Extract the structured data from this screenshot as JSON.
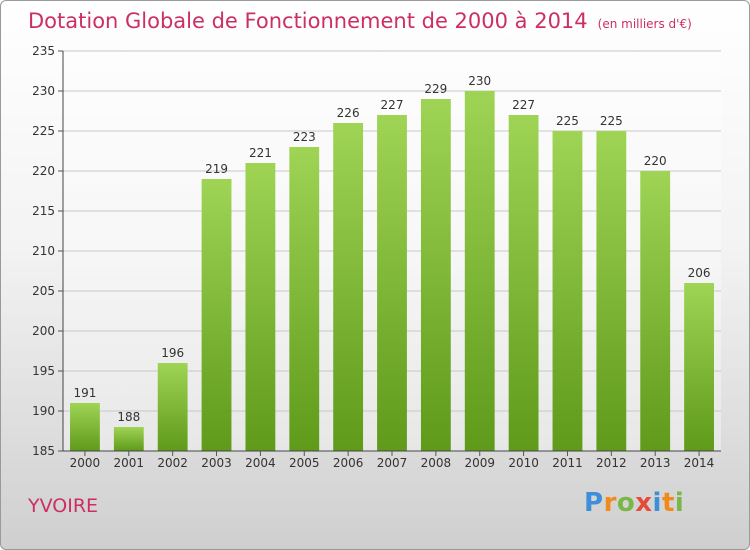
{
  "header": {
    "title": "Dotation Globale de Fonctionnement de 2000 à 2014",
    "subtitle": "(en milliers d'€)"
  },
  "footer": {
    "city": "YVOIRE",
    "logo": "Proxiti",
    "logo_colors": [
      "#3f8fd8",
      "#f08a1d",
      "#7ab648",
      "#e44b3a",
      "#3f8fd8",
      "#f08a1d",
      "#7ab648"
    ]
  },
  "chart_data": {
    "type": "bar",
    "title": "Dotation Globale de Fonctionnement de 2000 à 2014",
    "subtitle": "(en milliers d'€)",
    "categories": [
      "2000",
      "2001",
      "2002",
      "2003",
      "2004",
      "2005",
      "2006",
      "2007",
      "2008",
      "2009",
      "2010",
      "2011",
      "2012",
      "2013",
      "2014"
    ],
    "values": [
      191,
      188,
      196,
      219,
      221,
      223,
      226,
      227,
      229,
      230,
      227,
      225,
      225,
      220,
      206
    ],
    "ylim": [
      185,
      235
    ],
    "yticks": [
      185,
      190,
      195,
      200,
      205,
      210,
      215,
      220,
      225,
      230,
      235
    ],
    "grid": true,
    "bar_color_top": "#9fd455",
    "bar_color_bottom": "#5f9a1a",
    "xlabel": "",
    "ylabel": ""
  }
}
